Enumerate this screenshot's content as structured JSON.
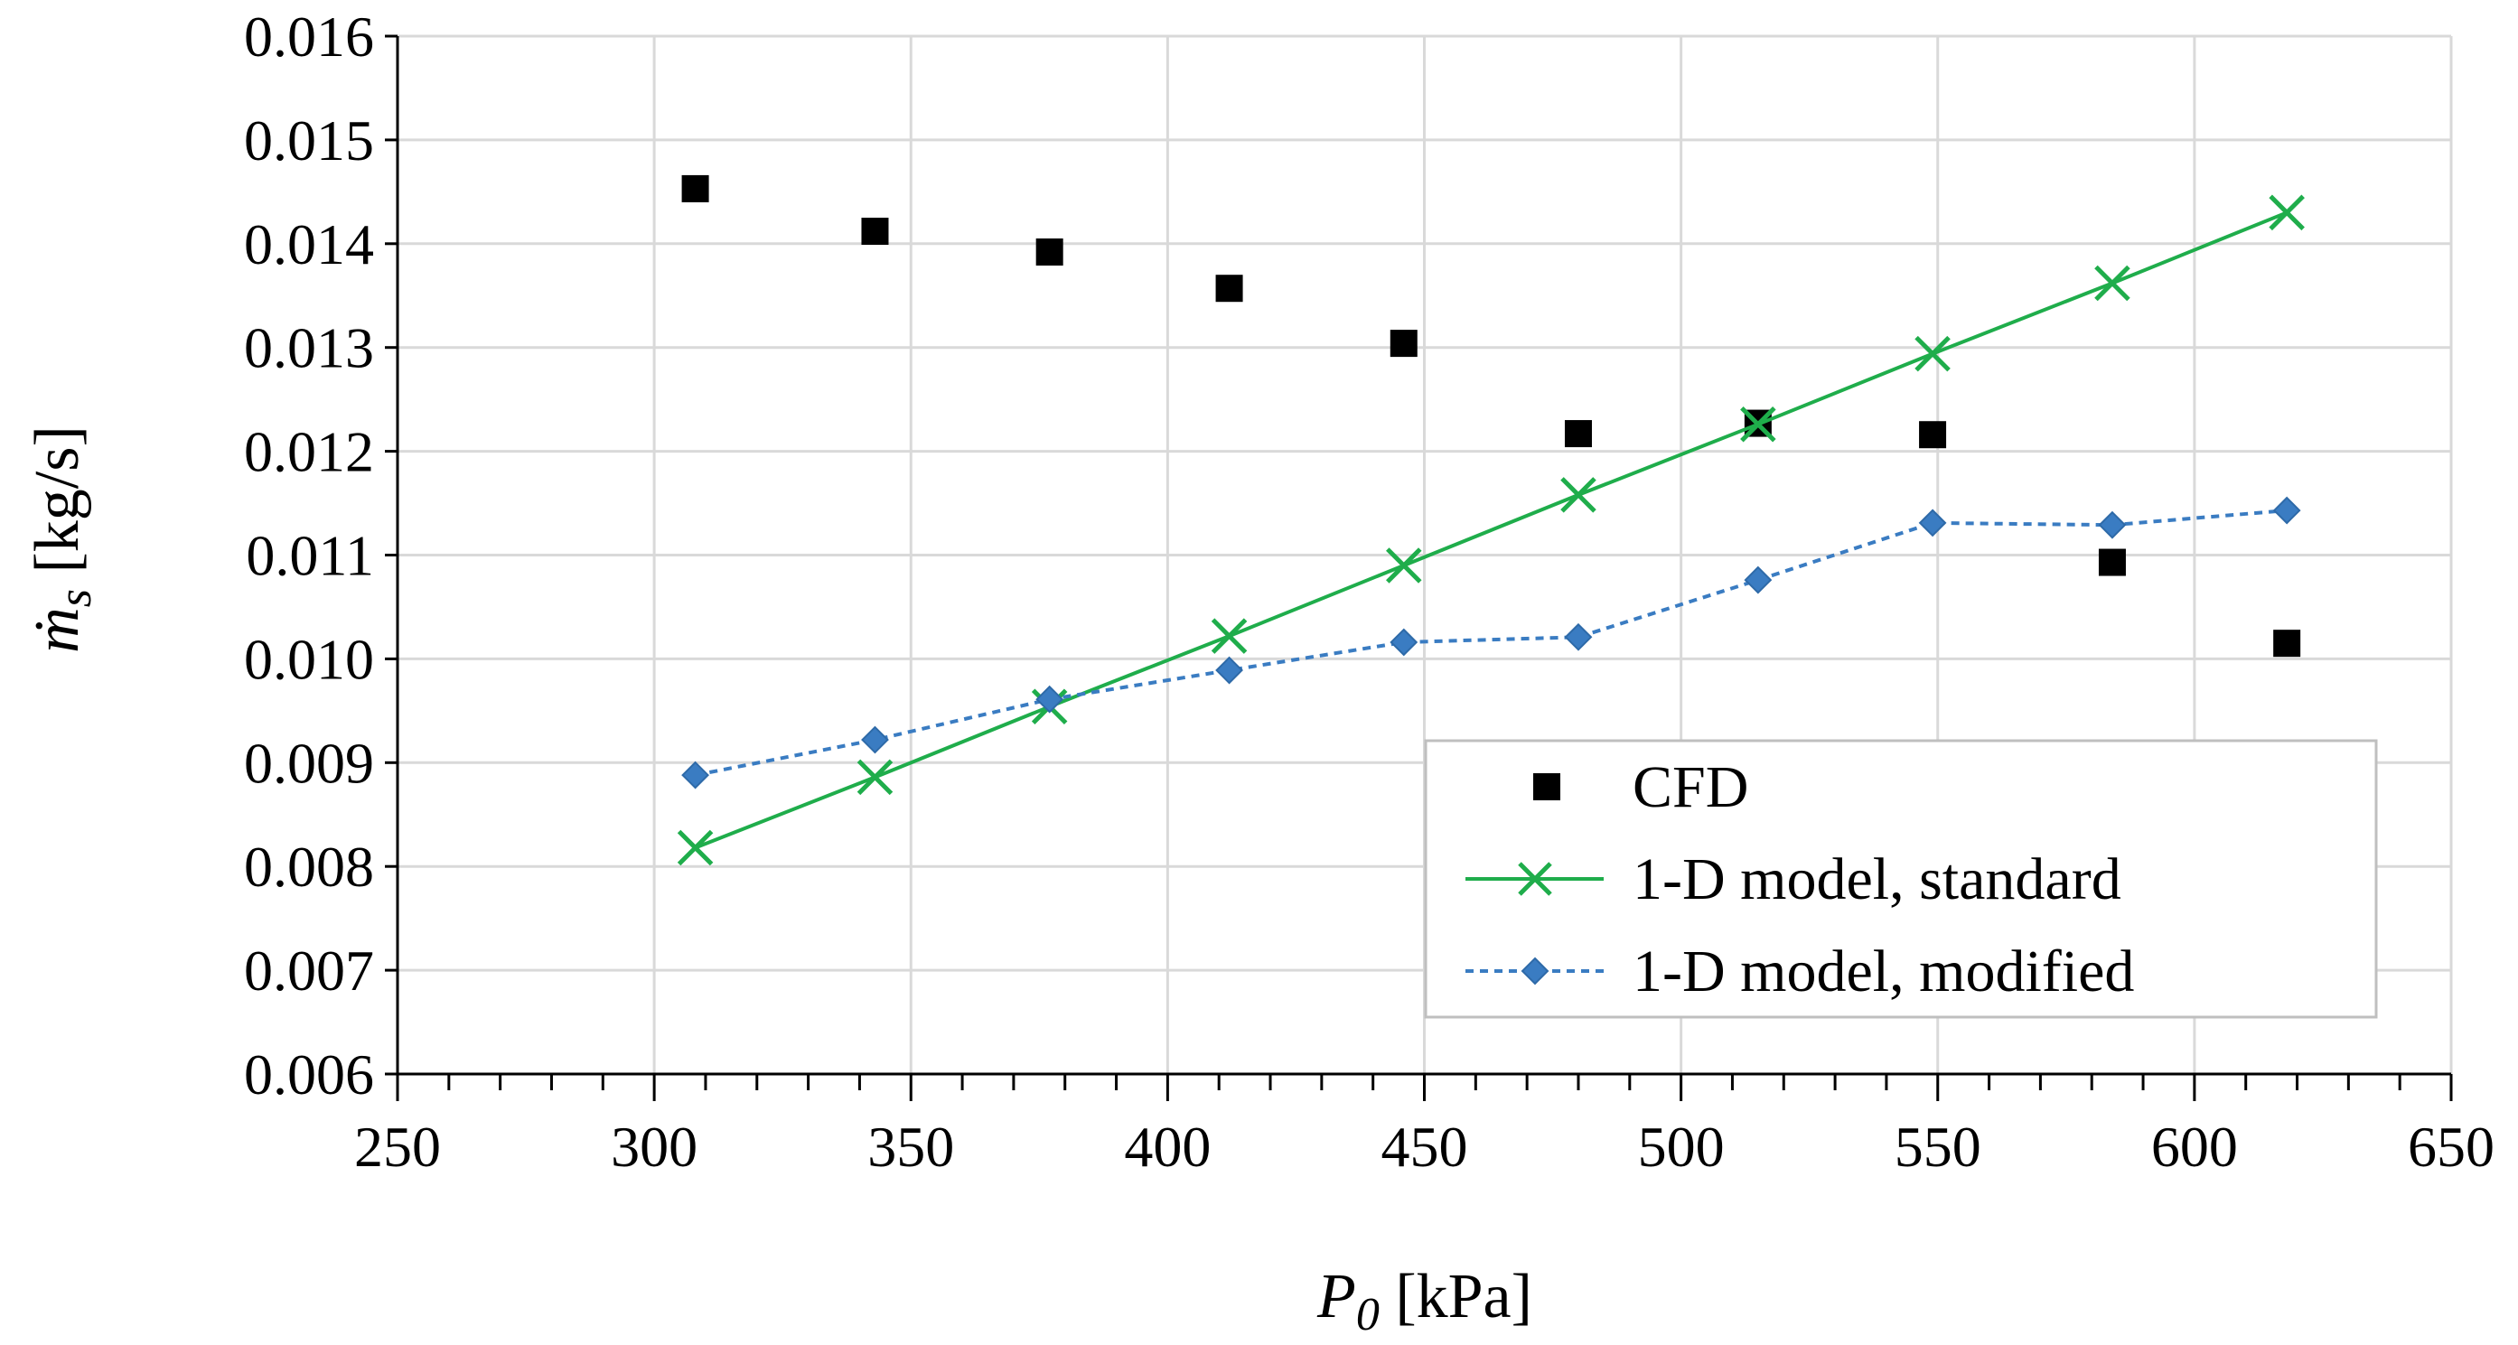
{
  "chart_data": {
    "type": "line",
    "xlabel": "P0 [kPa]",
    "xlabel_main": "P",
    "xlabel_sub": "0",
    "xlabel_unit": " [kPa]",
    "ylabel": "ṁs [kg/s]",
    "ylabel_main": "ṁ",
    "ylabel_sub": "s",
    "ylabel_unit": " [kg/s]",
    "xlim": [
      250,
      650
    ],
    "ylim": [
      0.006,
      0.016
    ],
    "x_ticks": [
      250,
      300,
      350,
      400,
      450,
      500,
      550,
      600,
      650
    ],
    "y_ticks": [
      0.006,
      0.007,
      0.008,
      0.009,
      0.01,
      0.011,
      0.012,
      0.013,
      0.014,
      0.015,
      0.016
    ],
    "x_tick_labels": [
      "250",
      "300",
      "350",
      "400",
      "450",
      "500",
      "550",
      "600",
      "650"
    ],
    "y_tick_labels": [
      "0.006",
      "0.007",
      "0.008",
      "0.009",
      "0.010",
      "0.011",
      "0.012",
      "0.013",
      "0.014",
      "0.015",
      "0.016"
    ],
    "grid": true,
    "legend_position": "bottom-right",
    "series": [
      {
        "name": "CFD",
        "style": "markers",
        "marker": "square",
        "color": "#000000",
        "x": [
          308,
          343,
          377,
          412,
          446,
          480,
          515,
          549,
          584,
          618
        ],
        "y": [
          0.01453,
          0.01412,
          0.01392,
          0.01357,
          0.01304,
          0.01217,
          0.01227,
          0.01216,
          0.01093,
          0.01015
        ]
      },
      {
        "name": "1-D model, standard",
        "style": "solid",
        "marker": "x",
        "color": "#1fad4b",
        "x": [
          308,
          343,
          377,
          412,
          446,
          480,
          515,
          549,
          584,
          618
        ],
        "y": [
          0.00818,
          0.00886,
          0.00954,
          0.01022,
          0.0109,
          0.01158,
          0.01226,
          0.01294,
          0.01362,
          0.0143
        ]
      },
      {
        "name": "1-D model, modified",
        "style": "dashed",
        "marker": "diamond",
        "color": "#3a7cc2",
        "x": [
          308,
          343,
          377,
          412,
          446,
          480,
          515,
          549,
          584,
          618
        ],
        "y": [
          0.00888,
          0.00922,
          0.00961,
          0.00989,
          0.01016,
          0.01021,
          0.01076,
          0.01131,
          0.01129,
          0.01143
        ]
      }
    ]
  }
}
